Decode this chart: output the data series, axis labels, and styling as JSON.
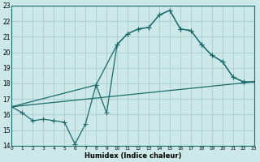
{
  "xlabel": "Humidex (Indice chaleur)",
  "bg_color": "#cce8e8",
  "line_color": "#1a6b6b",
  "grid_color": "#aacccc",
  "ylim": [
    14,
    23
  ],
  "xlim": [
    0,
    23
  ],
  "yticks": [
    14,
    15,
    16,
    17,
    18,
    19,
    20,
    21,
    22,
    23
  ],
  "xticks": [
    0,
    1,
    2,
    3,
    4,
    5,
    6,
    7,
    8,
    9,
    10,
    11,
    12,
    13,
    14,
    15,
    16,
    17,
    18,
    19,
    20,
    21,
    22,
    23
  ],
  "line1_x": [
    0,
    1,
    2,
    3,
    4,
    5,
    6,
    7,
    8,
    9,
    10,
    11,
    12,
    13,
    14,
    15,
    16,
    17,
    18,
    19,
    20,
    21,
    22,
    23
  ],
  "line1_y": [
    16.5,
    16.1,
    15.6,
    15.7,
    15.6,
    15.5,
    14.1,
    15.4,
    17.9,
    16.1,
    20.5,
    21.2,
    21.5,
    21.6,
    22.4,
    22.7,
    21.5,
    21.4,
    20.5,
    19.8,
    19.4,
    18.4,
    18.1,
    18.1
  ],
  "line2_x": [
    0,
    8,
    10,
    11,
    12,
    13,
    14,
    15,
    16,
    17,
    18,
    19,
    20,
    21,
    22,
    23
  ],
  "line2_y": [
    16.5,
    17.9,
    20.5,
    21.2,
    21.5,
    21.6,
    22.4,
    22.7,
    21.5,
    21.4,
    20.5,
    19.8,
    19.4,
    18.4,
    18.1,
    18.1
  ],
  "line3_x": [
    0,
    23
  ],
  "line3_y": [
    16.5,
    18.1
  ],
  "markersize": 2.5,
  "linewidth": 0.9
}
